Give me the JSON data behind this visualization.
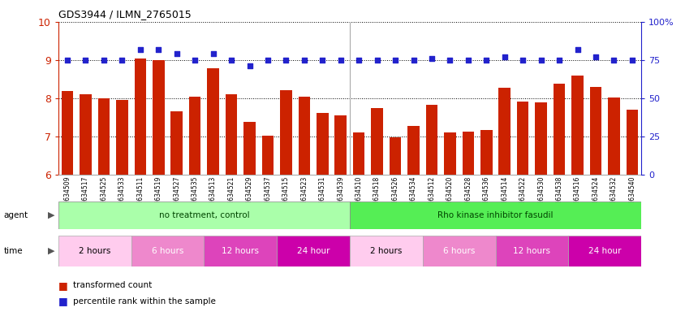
{
  "title": "GDS3944 / ILMN_2765015",
  "samples": [
    "GSM634509",
    "GSM634517",
    "GSM634525",
    "GSM634533",
    "GSM634511",
    "GSM634519",
    "GSM634527",
    "GSM634535",
    "GSM634513",
    "GSM634521",
    "GSM634529",
    "GSM634537",
    "GSM634515",
    "GSM634523",
    "GSM634531",
    "GSM634539",
    "GSM634510",
    "GSM634518",
    "GSM634526",
    "GSM634534",
    "GSM634512",
    "GSM634520",
    "GSM634528",
    "GSM634536",
    "GSM634514",
    "GSM634522",
    "GSM634530",
    "GSM634538",
    "GSM634516",
    "GSM634524",
    "GSM634532",
    "GSM634540"
  ],
  "bar_values": [
    8.2,
    8.1,
    8.0,
    7.95,
    9.05,
    9.0,
    7.65,
    8.05,
    8.78,
    8.1,
    7.38,
    7.02,
    8.22,
    8.05,
    7.62,
    7.55,
    7.1,
    7.75,
    6.98,
    7.28,
    7.82,
    7.1,
    7.12,
    7.18,
    8.28,
    7.92,
    7.9,
    8.38,
    8.6,
    8.3,
    8.02,
    7.7
  ],
  "dot_values_pct": [
    75,
    75,
    75,
    75,
    82,
    82,
    79,
    75,
    79,
    75,
    71,
    75,
    75,
    75,
    75,
    75,
    75,
    75,
    75,
    75,
    76,
    75,
    75,
    75,
    77,
    75,
    75,
    75,
    82,
    77,
    75,
    75
  ],
  "ylim": [
    6,
    10
  ],
  "yticks": [
    6,
    7,
    8,
    9,
    10
  ],
  "bar_color": "#cc2200",
  "dot_color": "#2222cc",
  "plot_bg": "#ffffff",
  "agent_groups": [
    {
      "label": "no treatment, control",
      "start": 0,
      "end": 16,
      "color": "#aaffaa"
    },
    {
      "label": "Rho kinase inhibitor fasudil",
      "start": 16,
      "end": 32,
      "color": "#55ee55"
    }
  ],
  "time_groups": [
    {
      "label": "2 hours",
      "start": 0,
      "end": 4,
      "color": "#ffccee"
    },
    {
      "label": "6 hours",
      "start": 4,
      "end": 8,
      "color": "#ee88cc"
    },
    {
      "label": "12 hours",
      "start": 8,
      "end": 12,
      "color": "#dd44bb"
    },
    {
      "label": "24 hour",
      "start": 12,
      "end": 16,
      "color": "#cc00aa"
    },
    {
      "label": "2 hours",
      "start": 16,
      "end": 20,
      "color": "#ffccee"
    },
    {
      "label": "6 hours",
      "start": 20,
      "end": 24,
      "color": "#ee88cc"
    },
    {
      "label": "12 hours",
      "start": 24,
      "end": 28,
      "color": "#dd44bb"
    },
    {
      "label": "24 hour",
      "start": 28,
      "end": 32,
      "color": "#cc00aa"
    }
  ],
  "right_yticks": [
    0,
    25,
    50,
    75,
    100
  ],
  "right_ylabels": [
    "0",
    "25",
    "50",
    "75",
    "100%"
  ]
}
